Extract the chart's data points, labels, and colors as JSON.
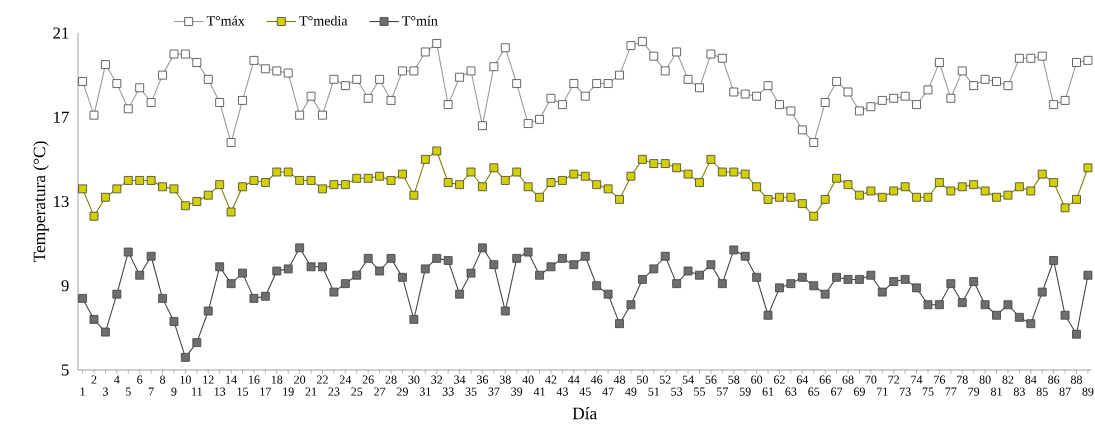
{
  "chart_data": {
    "type": "line",
    "xlabel": "Día",
    "ylabel": "Temperatura (°C)",
    "categories": [
      "1",
      "2",
      "3",
      "4",
      "5",
      "6",
      "7",
      "8",
      "9",
      "10",
      "11",
      "12",
      "13",
      "14",
      "15",
      "16",
      "17",
      "18",
      "19",
      "20",
      "21",
      "22",
      "23",
      "24",
      "25",
      "26",
      "27",
      "28",
      "29",
      "30",
      "31",
      "32",
      "33",
      "34",
      "35",
      "36",
      "37",
      "38",
      "39",
      "40",
      "41",
      "42",
      "43",
      "44",
      "45",
      "46",
      "47",
      "48",
      "49",
      "50",
      "51",
      "52",
      "53",
      "54",
      "55",
      "56",
      "57",
      "58",
      "59",
      "60",
      "61",
      "62",
      "63",
      "64",
      "65",
      "66",
      "67",
      "68",
      "69",
      "70",
      "71",
      "72",
      "73",
      "74",
      "75",
      "76",
      "77",
      "78",
      "79",
      "80",
      "81",
      "82",
      "83",
      "84",
      "85",
      "86",
      "87",
      "88",
      "89"
    ],
    "series": [
      {
        "name": "T°máx",
        "color": "#ffffff",
        "values": [
          18.7,
          17.1,
          19.5,
          18.6,
          17.4,
          18.4,
          17.7,
          19.0,
          20.0,
          20.0,
          19.6,
          18.8,
          17.7,
          15.8,
          17.8,
          19.7,
          19.3,
          19.2,
          19.1,
          17.1,
          18.0,
          17.1,
          18.8,
          18.5,
          18.8,
          17.9,
          18.8,
          17.8,
          19.2,
          19.2,
          20.1,
          20.5,
          17.6,
          18.9,
          19.2,
          16.6,
          19.4,
          20.3,
          18.6,
          16.7,
          16.9,
          17.9,
          17.6,
          18.6,
          18.0,
          18.6,
          18.6,
          19.0,
          20.4,
          20.6,
          19.9,
          19.2,
          20.1,
          18.8,
          18.4,
          20.0,
          19.8,
          18.2,
          18.1,
          18.0,
          18.5,
          17.6,
          17.3,
          16.4,
          15.8,
          17.7,
          18.7,
          18.2,
          17.3,
          17.5,
          17.8,
          17.9,
          18.0,
          17.6,
          18.3,
          19.6,
          17.9,
          19.2,
          18.5,
          18.8,
          18.7,
          18.5,
          19.8,
          19.8,
          19.9,
          17.6,
          17.8,
          19.6,
          19.7
        ]
      },
      {
        "name": "T°media",
        "color": "#d4d000",
        "values": [
          13.6,
          12.3,
          13.2,
          13.6,
          14.0,
          14.0,
          14.0,
          13.7,
          13.6,
          12.8,
          13.0,
          13.3,
          13.8,
          12.5,
          13.7,
          14.0,
          13.9,
          14.4,
          14.4,
          14.0,
          14.0,
          13.6,
          13.8,
          13.8,
          14.1,
          14.1,
          14.2,
          14.0,
          14.3,
          13.3,
          15.0,
          15.4,
          13.9,
          13.8,
          14.4,
          13.7,
          14.6,
          14.0,
          14.4,
          13.7,
          13.2,
          13.9,
          14.0,
          14.3,
          14.2,
          13.8,
          13.6,
          13.1,
          14.2,
          15.0,
          14.8,
          14.8,
          14.6,
          14.3,
          13.9,
          15.0,
          14.4,
          14.4,
          14.3,
          13.7,
          13.1,
          13.2,
          13.2,
          12.9,
          12.3,
          13.1,
          14.1,
          13.8,
          13.3,
          13.5,
          13.2,
          13.5,
          13.7,
          13.2,
          13.2,
          13.9,
          13.5,
          13.7,
          13.8,
          13.5,
          13.2,
          13.3,
          13.7,
          13.5,
          14.3,
          13.9,
          12.7,
          13.1,
          14.6
        ]
      },
      {
        "name": "T°mín",
        "color": "#6e6e6e",
        "values": [
          8.4,
          7.4,
          6.8,
          8.6,
          10.6,
          9.5,
          10.4,
          8.4,
          7.3,
          5.6,
          6.3,
          7.8,
          9.9,
          9.1,
          9.6,
          8.4,
          8.5,
          9.7,
          9.8,
          10.8,
          9.9,
          9.9,
          8.7,
          9.1,
          9.5,
          10.3,
          9.7,
          10.3,
          9.4,
          7.4,
          9.8,
          10.3,
          10.2,
          8.6,
          9.6,
          10.8,
          10.0,
          7.8,
          10.3,
          10.6,
          9.5,
          9.9,
          10.3,
          10.0,
          10.4,
          9.0,
          8.6,
          7.2,
          8.1,
          9.3,
          9.8,
          10.4,
          9.1,
          9.7,
          9.5,
          10.0,
          9.1,
          10.7,
          10.4,
          9.4,
          7.6,
          8.9,
          9.1,
          9.4,
          9.0,
          8.6,
          9.4,
          9.3,
          9.3,
          9.5,
          8.7,
          9.2,
          9.3,
          8.9,
          8.1,
          8.1,
          9.1,
          8.2,
          9.2,
          8.1,
          7.6,
          8.1,
          7.5,
          7.2,
          8.7,
          10.2,
          7.6,
          6.7,
          9.5
        ]
      }
    ],
    "ylim": [
      5,
      21
    ],
    "yticks": [
      5,
      9,
      13,
      17,
      21
    ],
    "legend": "top left",
    "marker": "square",
    "line_style": "solid"
  }
}
